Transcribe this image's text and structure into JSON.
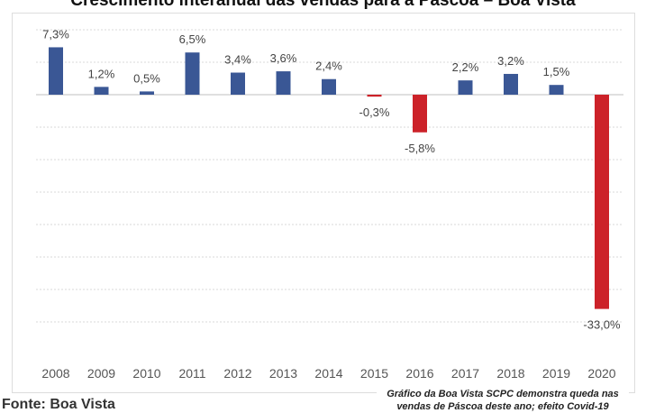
{
  "chart_data": {
    "type": "bar",
    "title": "Crescimento interanual das vendas para a Páscoa – Boa Vista",
    "categories": [
      "2008",
      "2009",
      "2010",
      "2011",
      "2012",
      "2013",
      "2014",
      "2015",
      "2016",
      "2017",
      "2018",
      "2019",
      "2020"
    ],
    "values": [
      7.3,
      1.2,
      0.5,
      6.5,
      3.4,
      3.6,
      2.4,
      -0.3,
      -5.8,
      2.2,
      3.2,
      1.5,
      -33.0
    ],
    "data_labels": [
      "7,3%",
      "1,2%",
      "0,5%",
      "6,5%",
      "3,4%",
      "3,6%",
      "2,4%",
      "-0,3%",
      "-5,8%",
      "2,2%",
      "3,2%",
      "1,5%",
      "-33,0%"
    ],
    "unit": "%",
    "ylim": [
      -35,
      10
    ],
    "grid": true,
    "y_axis_labels_shown": false,
    "colors": {
      "positive": "#3A5795",
      "negative": "#CC2229"
    },
    "source": "Fonte: Boa Vista",
    "caption": [
      "Gráfico da Boa Vista SCPC demonstra queda nas",
      "vendas de Páscoa deste ano; efeito Covid-19"
    ]
  }
}
